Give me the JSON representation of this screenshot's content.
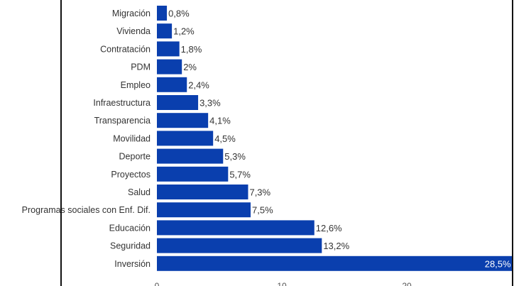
{
  "chart_data": {
    "type": "bar",
    "orientation": "horizontal",
    "categories": [
      "Migración",
      "Vivienda",
      "Contratación",
      "PDM",
      "Empleo",
      "Infraestructura",
      "Transparencia",
      "Movilidad",
      "Deporte",
      "Proyectos",
      "Salud",
      "Programas sociales con Enf. Dif.",
      "Educación",
      "Seguridad",
      "Inversión"
    ],
    "values": [
      0.8,
      1.2,
      1.8,
      2,
      2.4,
      3.3,
      4.1,
      4.5,
      5.3,
      5.7,
      7.3,
      7.5,
      12.6,
      13.2,
      28.5
    ],
    "value_labels": [
      "0,8%",
      "1,2%",
      "1,8%",
      "2%",
      "2,4%",
      "3,3%",
      "4,1%",
      "4,5%",
      "5,3%",
      "5,7%",
      "7,3%",
      "7,5%",
      "12,6%",
      "13,2%",
      "28,5%"
    ],
    "x_ticks": [
      "0",
      "10",
      "20"
    ],
    "xlim": [
      0,
      28.5
    ],
    "grid": false,
    "bar_color": "#0a3fae"
  }
}
